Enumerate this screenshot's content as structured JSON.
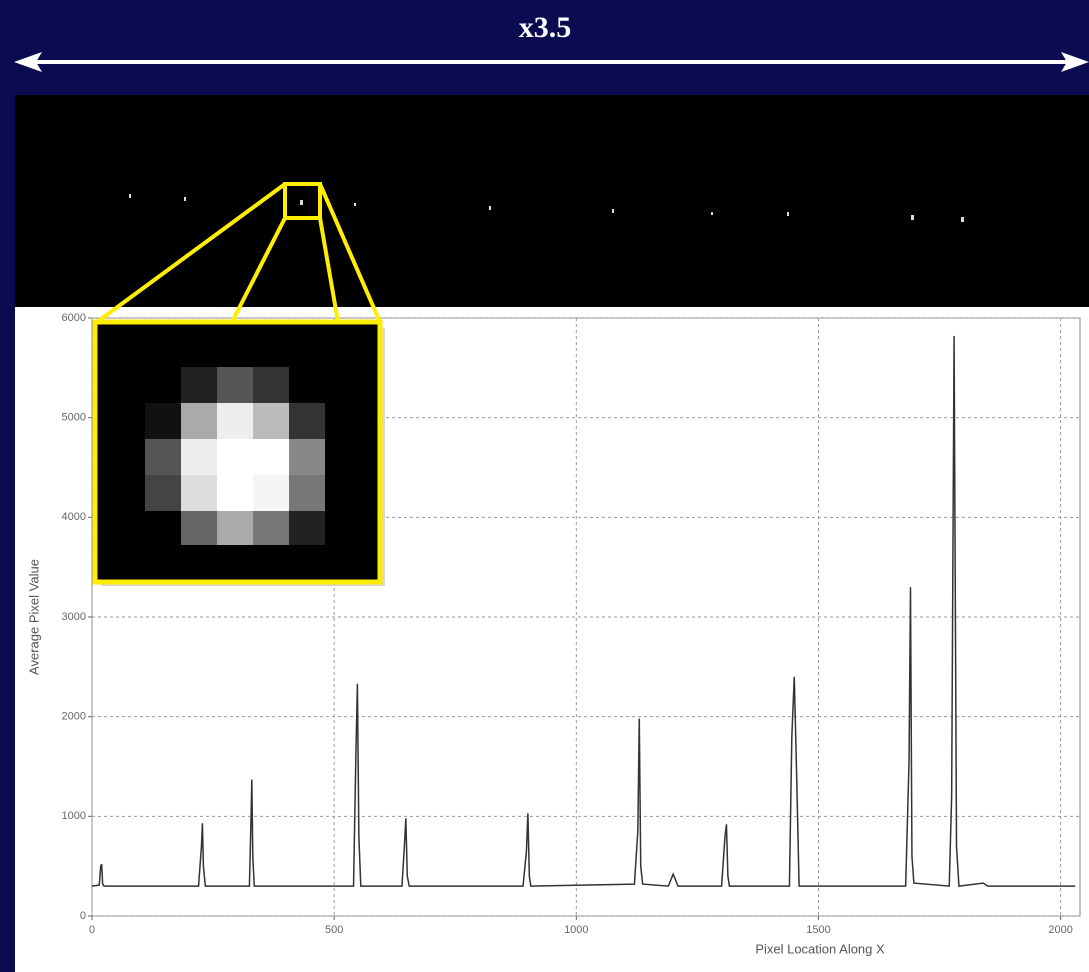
{
  "chart_data": {
    "type": "line",
    "title": "x3.5",
    "x_label": "Pixel Location Along X",
    "y_label": "Average Pixel Value",
    "x": [
      0,
      15,
      18,
      20,
      22,
      25,
      220,
      226,
      228,
      230,
      234,
      325,
      328,
      330,
      332,
      335,
      540,
      545,
      548,
      551,
      555,
      640,
      645,
      648,
      651,
      655,
      890,
      897,
      900,
      903,
      906,
      1120,
      1127,
      1130,
      1133,
      1137,
      1190,
      1200,
      1210,
      1300,
      1307,
      1310,
      1313,
      1316,
      1440,
      1445,
      1450,
      1455,
      1460,
      1680,
      1687,
      1690,
      1693,
      1697,
      1770,
      1775,
      1780,
      1785,
      1790,
      1840,
      1850,
      2030
    ],
    "series": [
      {
        "color": "#333333",
        "values": [
          300,
          310,
          500,
          520,
          320,
          300,
          300,
          700,
          930,
          500,
          300,
          300,
          900,
          1370,
          600,
          300,
          300,
          1650,
          2330,
          800,
          300,
          300,
          700,
          980,
          400,
          300,
          300,
          650,
          1030,
          400,
          300,
          320,
          850,
          1980,
          500,
          320,
          300,
          420,
          300,
          300,
          800,
          920,
          400,
          300,
          300,
          1800,
          2400,
          1400,
          300,
          300,
          1550,
          3300,
          600,
          330,
          300,
          1200,
          5820,
          700,
          300,
          330,
          300,
          300
        ]
      }
    ],
    "xlim": [
      0,
      2040
    ],
    "ylim": [
      0,
      6000
    ],
    "xticks": [
      0,
      500,
      1000,
      1500,
      2000
    ],
    "yticks": [
      0,
      1000,
      2000,
      3000,
      4000,
      5000,
      6000
    ],
    "grid": true
  }
}
